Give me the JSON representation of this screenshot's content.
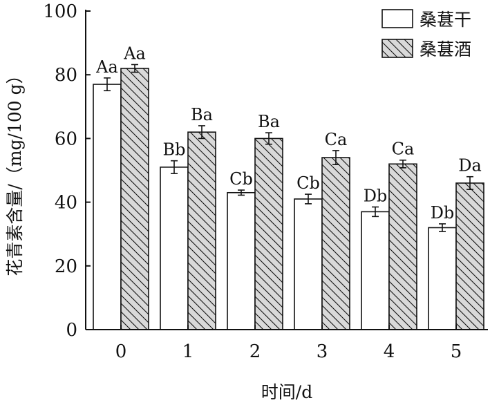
{
  "chart_data": {
    "type": "bar",
    "xlabel": "时间/d",
    "ylabel": "花青素含量/（mg/100 g）",
    "ylim": [
      0,
      100
    ],
    "yticks": [
      0,
      20,
      40,
      60,
      80,
      100
    ],
    "categories": [
      "0",
      "1",
      "2",
      "3",
      "4",
      "5"
    ],
    "legend_position": "top-right",
    "series": [
      {
        "name": "桑葚干",
        "pattern": "white",
        "values": [
          77,
          51,
          43,
          41,
          37,
          32
        ],
        "errors": [
          2,
          2,
          0.8,
          1.5,
          1.5,
          1.2
        ],
        "labels": [
          "Aa",
          "Bb",
          "Cb",
          "Cb",
          "Db",
          "Db"
        ]
      },
      {
        "name": "桑葚酒",
        "pattern": "gray-hatched",
        "values": [
          82,
          62,
          60,
          54,
          52,
          46
        ],
        "errors": [
          1.2,
          2,
          1.8,
          2.2,
          1.2,
          2
        ],
        "labels": [
          "Aa",
          "Ba",
          "Ba",
          "Ca",
          "Ca",
          "Da"
        ]
      }
    ]
  },
  "colors": {
    "axis": "#111111",
    "bar_fill_white": "#ffffff",
    "hatch_bg": "#d9d9d9"
  }
}
